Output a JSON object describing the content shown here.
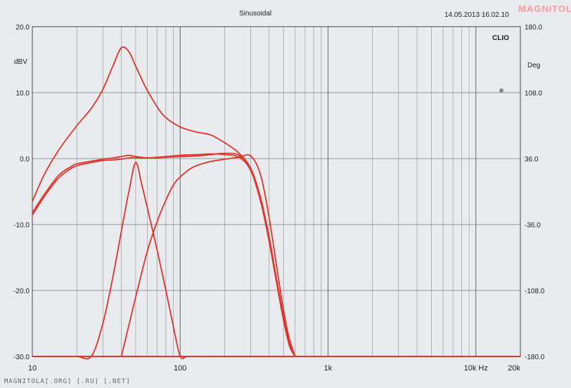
{
  "chart_data": {
    "type": "line",
    "title": "Sinusoidal",
    "datetime": "14.05.2013 16.02.10",
    "brand": "CLIO",
    "ylabel_left": "dBV",
    "ylabel_right": "Deg",
    "xscale": "log",
    "xlim": [
      10,
      20000
    ],
    "ylim": [
      -30,
      20
    ],
    "ylim_right": [
      -180,
      180
    ],
    "x_ticks": [
      {
        "value": 10,
        "label": "10"
      },
      {
        "value": 100,
        "label": "100"
      },
      {
        "value": 1000,
        "label": "1k"
      },
      {
        "value": 10000,
        "label": "10k Hz"
      },
      {
        "value": 20000,
        "label": "20k"
      }
    ],
    "y_ticks_left": [
      {
        "value": 20,
        "label": "20.0"
      },
      {
        "value": 10,
        "label": "10.0"
      },
      {
        "value": 0,
        "label": "0.0"
      },
      {
        "value": -10,
        "label": "-10.0"
      },
      {
        "value": -20,
        "label": "-20.0"
      },
      {
        "value": -30,
        "label": "-30.0"
      }
    ],
    "y_ticks_right": [
      {
        "value": 180,
        "label": "180.0"
      },
      {
        "value": 108,
        "label": "108.0"
      },
      {
        "value": 36,
        "label": "36.0"
      },
      {
        "value": -36,
        "label": "-36.0"
      },
      {
        "value": -108,
        "label": "-108.0"
      },
      {
        "value": -180,
        "label": "-180.0"
      }
    ],
    "grid": true,
    "series_color": "#e0352b",
    "series": [
      {
        "x": [
          10,
          12,
          15,
          20,
          25,
          30,
          35,
          40,
          45,
          50,
          55,
          60,
          70,
          80,
          90,
          100,
          110,
          120,
          130,
          140,
          150,
          170
        ],
        "y": [
          -30,
          -30,
          -30,
          -30,
          -30,
          -25,
          -18,
          -11,
          -5,
          -0.6,
          -4,
          -7.5,
          -14,
          -20,
          -25.5,
          -30,
          -30,
          -30,
          -30,
          -30,
          -30,
          -30
        ]
      },
      {
        "x": [
          10,
          12,
          15,
          18,
          20,
          25,
          30,
          35,
          40,
          45,
          50,
          60,
          70,
          80,
          100,
          130,
          160,
          200,
          250,
          300,
          350,
          400,
          450,
          500,
          550,
          600
        ],
        "y": [
          -8.2,
          -5.5,
          -2.6,
          -1.3,
          -0.8,
          -0.4,
          -0.1,
          0.1,
          0.3,
          0.5,
          0.3,
          0.1,
          0.1,
          0.2,
          0.3,
          0.4,
          0.6,
          0.8,
          0.5,
          -1.5,
          -6,
          -12,
          -18.5,
          -24,
          -28,
          -30
        ]
      },
      {
        "x": [
          10,
          12,
          15,
          18,
          20,
          25,
          30,
          35,
          40,
          45,
          50,
          60,
          70,
          80,
          100,
          130,
          160,
          200,
          250,
          300,
          350,
          400,
          450,
          500,
          550,
          600
        ],
        "y": [
          -8.6,
          -5.8,
          -3.0,
          -1.6,
          -1.1,
          -0.6,
          -0.3,
          -0.2,
          -0.1,
          0.1,
          0.1,
          0.1,
          0.2,
          0.3,
          0.5,
          0.6,
          0.7,
          0.6,
          0.2,
          -1.8,
          -6.5,
          -12.6,
          -19,
          -24.5,
          -28.5,
          -30
        ]
      },
      {
        "x": [
          40,
          50,
          60,
          70,
          80,
          90,
          100,
          120,
          150,
          200,
          250,
          300,
          350,
          400,
          450,
          500,
          550,
          600
        ],
        "y": [
          -30,
          -21,
          -14,
          -9.5,
          -6.3,
          -4,
          -2.8,
          -1.4,
          -0.6,
          -0.1,
          0.2,
          0.4,
          -2.5,
          -9,
          -16.5,
          -23,
          -27.5,
          -30
        ]
      },
      {
        "x": [
          10,
          12,
          15,
          20,
          25,
          30,
          35,
          40,
          45,
          50,
          55,
          60,
          70,
          80,
          100,
          130,
          160,
          200,
          250,
          300,
          350,
          400,
          450,
          500,
          550,
          600
        ],
        "y": [
          -6.5,
          -2.5,
          1.2,
          5,
          7.6,
          10.5,
          14,
          16.8,
          16.2,
          14,
          12,
          10.3,
          7.8,
          6.2,
          4.8,
          4.0,
          3.6,
          2.4,
          0.8,
          -1.5,
          -6,
          -12,
          -18.5,
          -24,
          -28,
          -30
        ]
      }
    ]
  }
}
